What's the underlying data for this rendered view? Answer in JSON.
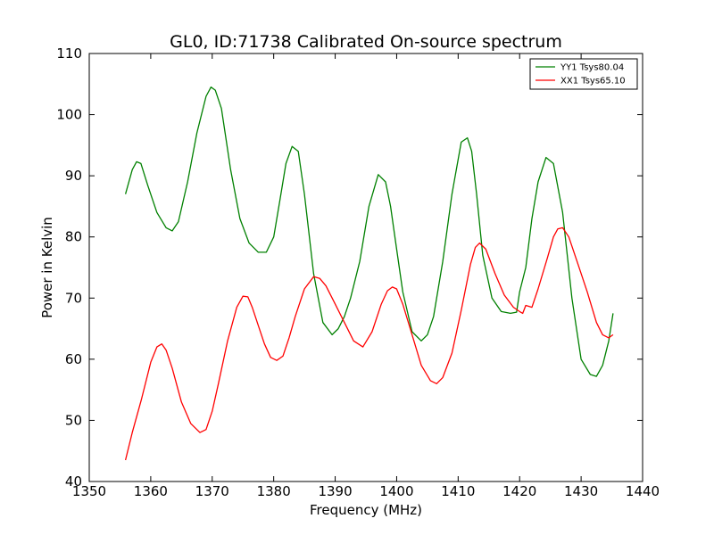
{
  "chart_data": {
    "type": "line",
    "title": "GL0, ID:71738 Calibrated On-source spectrum",
    "xlabel": "Frequency (MHz)",
    "ylabel": "Power in Kelvin",
    "xlim": [
      1350,
      1440
    ],
    "ylim": [
      40,
      110
    ],
    "xticks": [
      1350,
      1360,
      1370,
      1380,
      1390,
      1400,
      1410,
      1420,
      1430,
      1440
    ],
    "yticks": [
      40,
      50,
      60,
      70,
      80,
      90,
      100,
      110
    ],
    "grid": false,
    "legend_position": "top-right",
    "series": [
      {
        "name": "YY1 Tsys80.04",
        "color": "#008000",
        "x": [
          1355.9,
          1357.0,
          1357.7,
          1358.4,
          1359.5,
          1361.0,
          1362.5,
          1363.5,
          1364.5,
          1366.0,
          1367.5,
          1369.0,
          1369.8,
          1370.5,
          1371.5,
          1373.0,
          1374.5,
          1376.0,
          1377.5,
          1378.8,
          1380.0,
          1381.0,
          1382.0,
          1383.0,
          1384.0,
          1385.0,
          1386.5,
          1388.0,
          1389.5,
          1390.5,
          1391.5,
          1392.5,
          1394.0,
          1395.5,
          1397.0,
          1398.2,
          1399.0,
          1400.0,
          1401.0,
          1402.5,
          1404.0,
          1405.0,
          1406.0,
          1407.5,
          1409.0,
          1410.5,
          1411.5,
          1412.2,
          1413.0,
          1414.0,
          1415.5,
          1417.0,
          1418.5,
          1419.5,
          1420.0,
          1421.0,
          1422.0,
          1423.0,
          1424.3,
          1425.5,
          1427.0,
          1428.5,
          1430.0,
          1431.5,
          1432.5,
          1433.5,
          1434.5,
          1435.2
        ],
        "values": [
          87,
          91,
          92.3,
          92,
          88.5,
          84,
          81.5,
          81,
          82.5,
          89,
          97,
          103,
          104.5,
          104,
          101,
          91,
          83,
          79,
          77.5,
          77.5,
          80,
          86,
          92,
          94.8,
          94,
          87,
          74,
          66,
          64,
          65,
          67,
          70,
          76,
          85,
          90.2,
          89,
          85,
          78,
          71,
          64.5,
          63,
          64,
          67,
          76,
          87,
          95.5,
          96.2,
          94,
          87,
          77,
          70,
          67.8,
          67.5,
          67.7,
          71,
          75,
          83,
          89,
          93,
          92,
          84,
          70,
          60,
          57.5,
          57.2,
          59,
          63,
          67.5
        ]
      },
      {
        "name": "XX1 Tsys65.10",
        "color": "#ff0000",
        "x": [
          1355.9,
          1357.0,
          1358.5,
          1360.0,
          1361.0,
          1361.8,
          1362.5,
          1363.5,
          1365.0,
          1366.5,
          1368.0,
          1369.0,
          1370.0,
          1371.0,
          1372.5,
          1374.0,
          1375.0,
          1375.8,
          1376.5,
          1377.5,
          1378.5,
          1379.5,
          1380.5,
          1381.5,
          1382.5,
          1383.5,
          1385.0,
          1386.5,
          1387.5,
          1388.5,
          1390.0,
          1391.5,
          1393.0,
          1394.5,
          1396.0,
          1397.5,
          1398.5,
          1399.3,
          1400.0,
          1401.0,
          1402.5,
          1404.0,
          1405.5,
          1406.5,
          1407.5,
          1409.0,
          1410.5,
          1412.0,
          1412.8,
          1413.5,
          1414.5,
          1416.0,
          1417.5,
          1419.0,
          1420.0,
          1420.5,
          1421.0,
          1422.0,
          1423.0,
          1424.5,
          1425.5,
          1426.2,
          1427.0,
          1428.0,
          1429.5,
          1431.0,
          1432.5,
          1433.5,
          1434.5,
          1435.2
        ],
        "values": [
          43.5,
          48,
          53.5,
          59.5,
          62,
          62.5,
          61.5,
          58.5,
          53,
          49.5,
          48,
          48.5,
          51.5,
          56,
          63,
          68.5,
          70.3,
          70.2,
          68.5,
          65.5,
          62.5,
          60.3,
          59.8,
          60.5,
          63.5,
          67,
          71.5,
          73.5,
          73.2,
          72,
          69,
          66,
          63,
          62,
          64.5,
          69,
          71.2,
          71.8,
          71.5,
          69,
          64,
          59,
          56.5,
          56,
          57,
          61,
          68,
          75.5,
          78.3,
          79,
          78,
          74,
          70.5,
          68.5,
          67.8,
          67.5,
          68.8,
          68.5,
          71.5,
          76.5,
          80,
          81.3,
          81.5,
          80,
          75.5,
          71,
          66,
          64,
          63.5,
          64
        ]
      }
    ]
  }
}
